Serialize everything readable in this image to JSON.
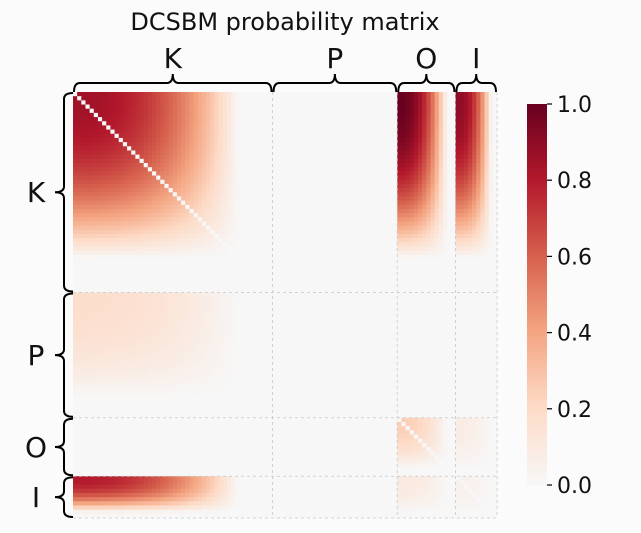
{
  "chart_data": {
    "type": "heatmap",
    "title": "DCSBM probability matrix",
    "groups": [
      "K",
      "P",
      "O",
      "I"
    ],
    "group_sizes": [
      48,
      30,
      14,
      10
    ],
    "block_probabilities": {
      "rows": [
        "K",
        "P",
        "O",
        "I"
      ],
      "cols": [
        "K",
        "P",
        "O",
        "I"
      ],
      "values": [
        [
          0.85,
          0.0,
          1.0,
          0.9
        ],
        [
          0.18,
          0.0,
          0.0,
          0.0
        ],
        [
          0.0,
          0.0,
          0.25,
          0.08
        ],
        [
          0.8,
          0.0,
          0.1,
          0.05
        ]
      ]
    },
    "diagonal_zero": true,
    "degree_correction": "decreasing within each group",
    "colorbar": {
      "colormap": "RdBu_r (white to dark red)",
      "range": [
        0.0,
        1.0
      ],
      "ticks": [
        "0.0",
        "0.2",
        "0.4",
        "0.6",
        "0.8",
        "1.0"
      ]
    },
    "colors": {
      "low": "#f7f7f7",
      "high": "#67001f"
    }
  }
}
